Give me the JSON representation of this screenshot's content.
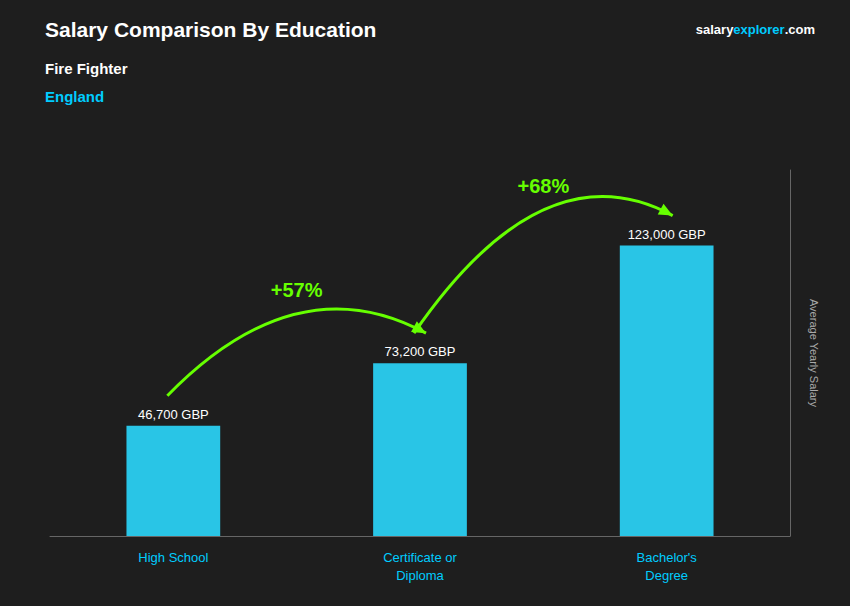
{
  "chart_data": {
    "type": "bar",
    "title": "Salary Comparison By Education",
    "subtitle": [
      "Fire Fighter",
      "England"
    ],
    "watermark": [
      "salary",
      "explorer",
      ".com"
    ],
    "ylabel": "Average Yearly Salary",
    "categories": [
      "High School",
      "Certificate or\nDiploma",
      "Bachelor's\nDegree"
    ],
    "values": [
      46700,
      73200,
      123000
    ],
    "value_labels": [
      "46,700 GBP",
      "73,200 GBP",
      "123,000 GBP"
    ],
    "data_labels": true,
    "color": "#29c5e6",
    "ylim": [
      0,
      155000
    ],
    "grid": false,
    "tick_labels": "x",
    "annotations": [
      {
        "text": "+57%",
        "from": "High School",
        "to": "Certificate or\nDiploma"
      },
      {
        "text": "+68%",
        "from": "Certificate or\nDiploma",
        "to": "Bachelor's\nDegree"
      }
    ]
  }
}
